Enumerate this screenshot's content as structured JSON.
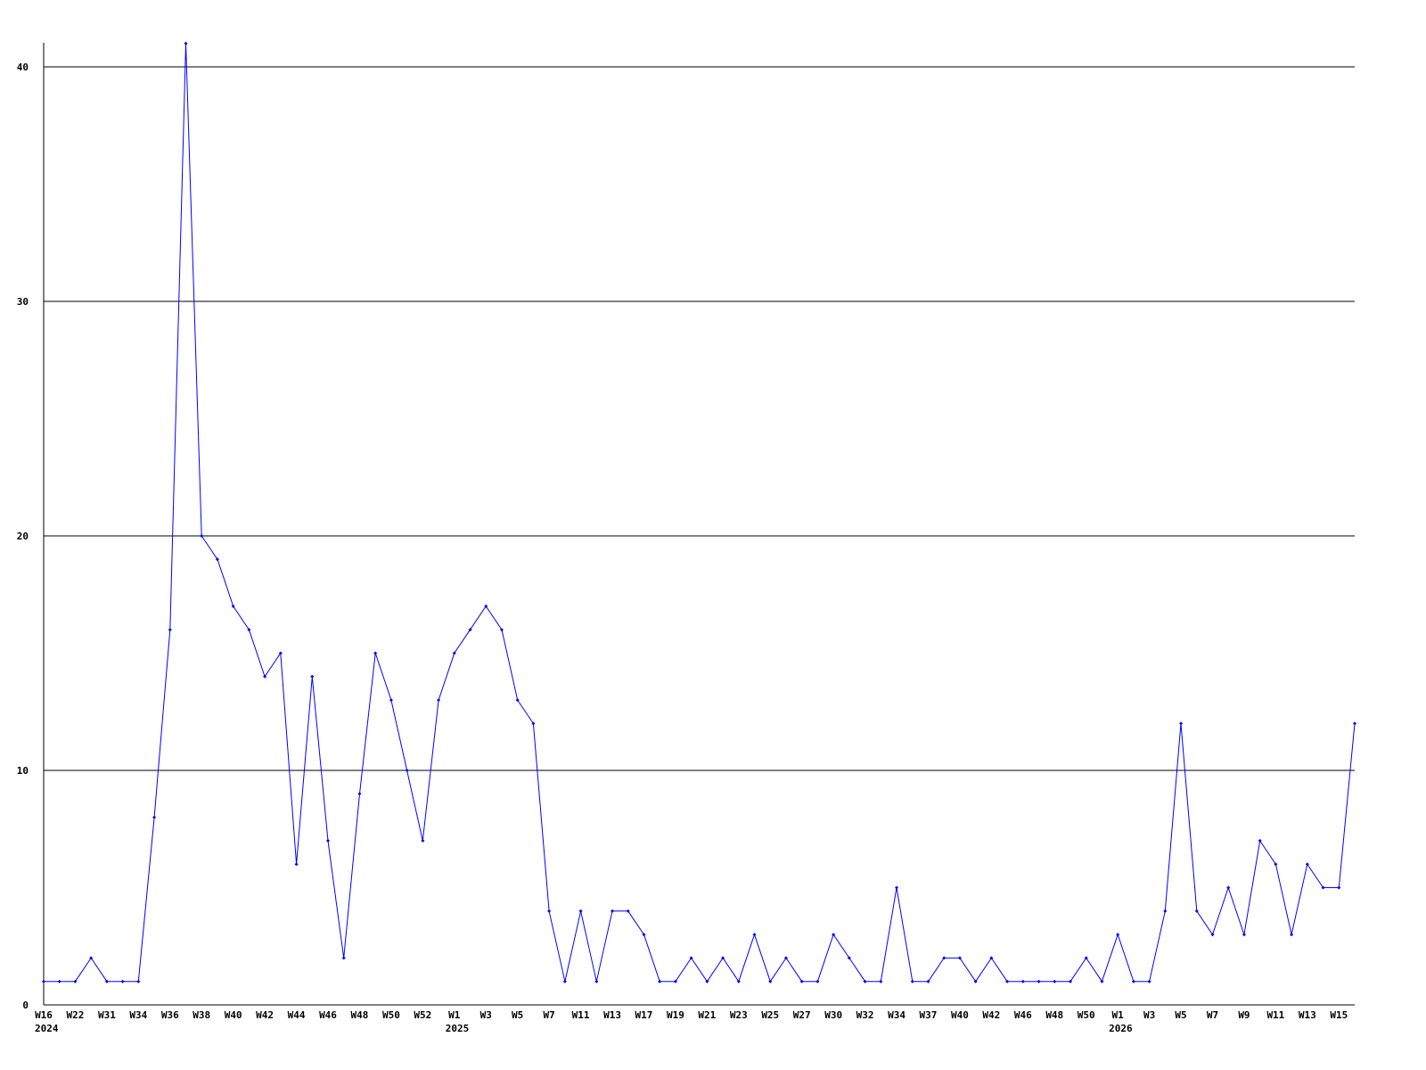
{
  "chart_data": {
    "type": "line",
    "title": "",
    "xlabel": "",
    "ylabel": "",
    "ylim": [
      0,
      41
    ],
    "yticks": [
      0,
      10,
      20,
      30,
      40
    ],
    "grid": "horizontal",
    "line_color": "#0000ff",
    "values": [
      1,
      1,
      1,
      2,
      1,
      1,
      1,
      8,
      16,
      41,
      20,
      19,
      17,
      16,
      14,
      15,
      6,
      14,
      7,
      2,
      9,
      15,
      13,
      10,
      7,
      13,
      15,
      16,
      17,
      16,
      13,
      12,
      4,
      1,
      4,
      1,
      4,
      4,
      3,
      1,
      1,
      2,
      1,
      2,
      1,
      3,
      1,
      2,
      1,
      1,
      3,
      2,
      1,
      1,
      5,
      1,
      1,
      2,
      2,
      1,
      2,
      1,
      1,
      1,
      1,
      1,
      2,
      1,
      3,
      1,
      1,
      4,
      12,
      4,
      3,
      5,
      3,
      7,
      6,
      3,
      6,
      5,
      5,
      12
    ],
    "x_tick_labels": [
      "W16",
      "W22",
      "W31",
      "W34",
      "W36",
      "W38",
      "W40",
      "W42",
      "W44",
      "W46",
      "W48",
      "W50",
      "W52",
      "W1",
      "W3",
      "W5",
      "W7",
      "W11",
      "W13",
      "W17",
      "W19",
      "W21",
      "W23",
      "W25",
      "W27",
      "W30",
      "W32",
      "W34",
      "W37",
      "W40",
      "W42",
      "W46",
      "W48",
      "W50",
      "W1",
      "W3",
      "W5",
      "W7",
      "W9",
      "W11",
      "W13",
      "W15"
    ],
    "year_labels": [
      {
        "label": "2024",
        "tick_index": 0
      },
      {
        "label": "2025",
        "tick_index": 13
      },
      {
        "label": "2026",
        "tick_index": 34
      }
    ]
  }
}
